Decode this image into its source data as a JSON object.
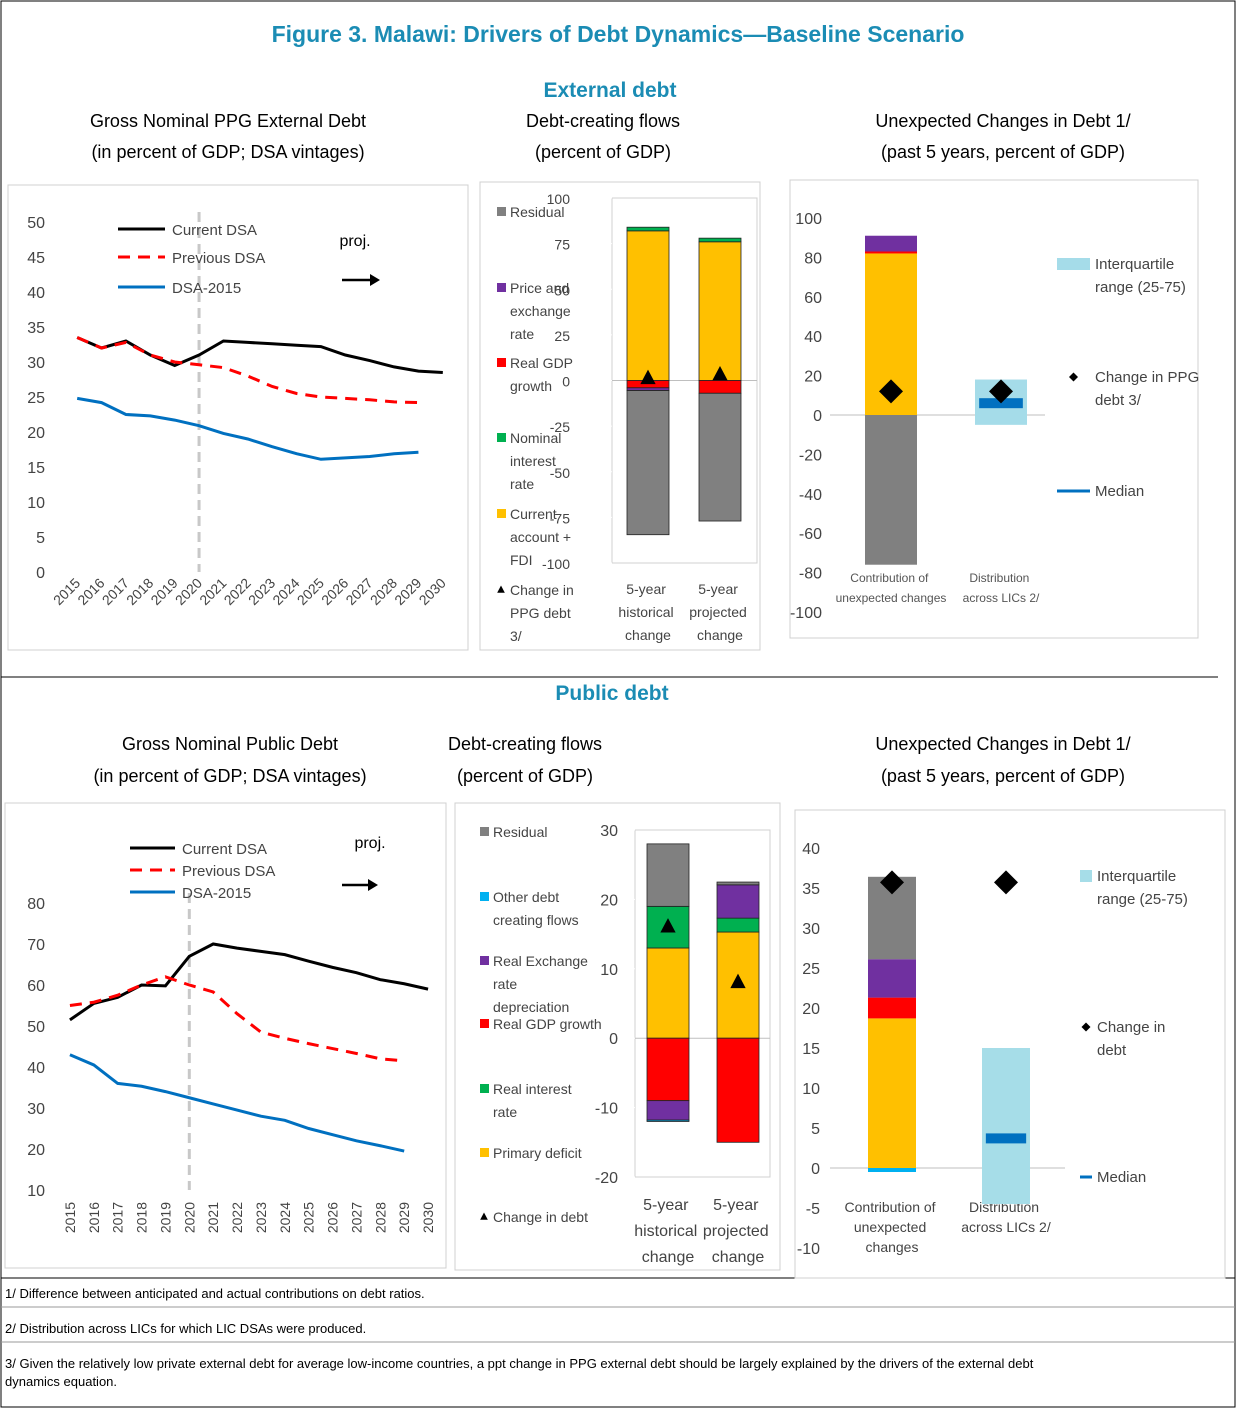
{
  "title": "Figure 3. Malawi: Drivers of Debt Dynamics—Baseline Scenario",
  "sections": [
    "External debt",
    "Public debt"
  ],
  "notes": [
    "1/ Difference between anticipated and actual contributions on debt ratios.",
    "2/ Distribution across LICs for which LIC DSAs were produced.",
    "3/ Given the relatively low private external debt for average low-income countries, a ppt change in PPG external debt should be largely explained by the drivers of the external debt dynamics equation."
  ],
  "chart_data": [
    {
      "type": "line",
      "title": "Gross Nominal PPG External Debt",
      "subtitle": "(in percent of GDP; DSA vintages)",
      "categories": [
        "2015",
        "2016",
        "2017",
        "2018",
        "2019",
        "2020",
        "2021",
        "2022",
        "2023",
        "2024",
        "2025",
        "2026",
        "2027",
        "2028",
        "2029",
        "2030"
      ],
      "ylim": [
        0,
        50
      ],
      "yticks": [
        0,
        5,
        10,
        15,
        20,
        25,
        30,
        35,
        40,
        45,
        50
      ],
      "annotation": "proj.",
      "projection_start": "2020",
      "series": [
        {
          "name": "Current DSA",
          "color": "#000000",
          "values": [
            33.5,
            32,
            33,
            31,
            29.5,
            31,
            33,
            32.8,
            32.6,
            32.4,
            32.2,
            31,
            30.2,
            29.3,
            28.7,
            28.5
          ]
        },
        {
          "name": "Previous DSA",
          "color": "#ff0000",
          "dash": true,
          "values": [
            33.5,
            32,
            32.8,
            31,
            30,
            29.6,
            29.2,
            28,
            26.5,
            25.5,
            25,
            24.8,
            24.6,
            24.3,
            24.2,
            null
          ]
        },
        {
          "name": "DSA-2015",
          "color": "#0070c0",
          "values": [
            24.8,
            24.2,
            22.5,
            22.3,
            21.7,
            20.9,
            19.8,
            19,
            17.9,
            16.9,
            16.1,
            16.3,
            16.5,
            16.9,
            17.1,
            null
          ]
        }
      ]
    },
    {
      "type": "stacked_bar",
      "title": "Debt-creating flows",
      "subtitle": "(percent of GDP)",
      "categories": [
        "5-year historical change",
        "5-year projected change"
      ],
      "ylim": [
        -100,
        100
      ],
      "yticks": [
        -100,
        -75,
        -50,
        -25,
        0,
        25,
        50,
        75,
        100
      ],
      "series": [
        {
          "name": "Residual",
          "color": "#808080",
          "values": [
            -79,
            -70
          ]
        },
        {
          "name": "Price and exchange rate",
          "color": "#7030a0",
          "values": [
            -1.5,
            0
          ]
        },
        {
          "name": "Real GDP growth",
          "color": "#ff0000",
          "values": [
            -4,
            -7
          ]
        },
        {
          "name": "Nominal interest rate",
          "color": "#00b050",
          "values": [
            2,
            2
          ]
        },
        {
          "name": "Current account + FDI",
          "color": "#ffc000",
          "values": [
            82,
            76
          ]
        },
        {
          "name": "Change in PPG debt 3/",
          "color": "#000000",
          "kind": "marker",
          "marker": "triangle",
          "values": [
            1,
            3
          ]
        }
      ]
    },
    {
      "type": "stacked_bar",
      "title": "Unexpected Changes in Debt 1/",
      "subtitle": "(past 5 years, percent of GDP)",
      "categories": [
        "Contribution of unexpected changes",
        "Distribution across LICs 2/"
      ],
      "ylim": [
        -100,
        100
      ],
      "yticks": [
        -100,
        -80,
        -60,
        -40,
        -20,
        0,
        20,
        40,
        60,
        80,
        100
      ],
      "series": [
        {
          "color": "#7030a0",
          "values": [
            8,
            null
          ]
        },
        {
          "color": "#ff0000",
          "values": [
            1,
            null
          ]
        },
        {
          "color": "#ffc000",
          "values": [
            82,
            null
          ]
        },
        {
          "color": "#808080",
          "values": [
            -76,
            null
          ]
        },
        {
          "name": "Interquartile range (25-75)",
          "color": "#a5dce9",
          "kind": "range",
          "low": [
            null,
            -5
          ],
          "high": [
            null,
            18
          ]
        },
        {
          "name": "Change in PPG debt 3/",
          "color": "#000000",
          "kind": "marker",
          "marker": "diamond",
          "values": [
            12,
            12
          ]
        },
        {
          "name": "Median",
          "color": "#0070c0",
          "kind": "median",
          "values": [
            null,
            6
          ]
        }
      ]
    },
    {
      "type": "line",
      "title": "Gross Nominal Public Debt",
      "subtitle": "(in percent of GDP; DSA vintages)",
      "categories": [
        "2015",
        "2016",
        "2017",
        "2018",
        "2019",
        "2020",
        "2021",
        "2022",
        "2023",
        "2024",
        "2025",
        "2026",
        "2027",
        "2028",
        "2029",
        "2030"
      ],
      "ylim": [
        10,
        80
      ],
      "yticks": [
        10,
        20,
        30,
        40,
        50,
        60,
        70,
        80
      ],
      "annotation": "proj.",
      "projection_start": "2020",
      "series": [
        {
          "name": "Current DSA",
          "color": "#000000",
          "values": [
            51.5,
            55.5,
            57,
            60,
            59.8,
            67,
            70,
            69,
            68.2,
            67.4,
            65.8,
            64.3,
            63,
            61.3,
            60.3,
            59
          ]
        },
        {
          "name": "Previous DSA",
          "color": "#ff0000",
          "dash": true,
          "values": [
            55,
            55.8,
            57.5,
            60,
            62,
            60,
            58.3,
            53,
            48.5,
            47,
            45.7,
            44.5,
            43.3,
            42,
            41.5,
            null
          ]
        },
        {
          "name": "DSA-2015",
          "color": "#0070c0",
          "values": [
            43,
            40.5,
            36,
            35.3,
            34,
            32.5,
            31,
            29.5,
            28,
            27,
            25,
            23.5,
            22,
            20.8,
            19.5,
            null
          ]
        }
      ]
    },
    {
      "type": "stacked_bar",
      "title": "Debt-creating flows",
      "subtitle": "(percent of GDP)",
      "categories": [
        "5-year historical change",
        "5-year projected change"
      ],
      "ylim": [
        -20,
        30
      ],
      "yticks": [
        -20,
        -10,
        0,
        10,
        20,
        30
      ],
      "series": [
        {
          "name": "Residual",
          "color": "#808080",
          "values": [
            9,
            0.4
          ]
        },
        {
          "name": "Other debt creating flows",
          "color": "#00b0f0",
          "values": [
            -0.2,
            0
          ]
        },
        {
          "name": "Real Exchange rate depreciation",
          "color": "#7030a0",
          "values": [
            -2.8,
            4.8
          ]
        },
        {
          "name": "Real GDP growth",
          "color": "#ff0000",
          "values": [
            -9,
            -15
          ]
        },
        {
          "name": "Real interest rate",
          "color": "#00b050",
          "values": [
            6,
            2
          ]
        },
        {
          "name": "Primary deficit",
          "color": "#ffc000",
          "values": [
            13,
            15.3
          ]
        },
        {
          "name": "Change in debt",
          "color": "#000000",
          "kind": "marker",
          "marker": "triangle",
          "values": [
            16,
            8
          ]
        }
      ]
    },
    {
      "type": "stacked_bar",
      "title": "Unexpected Changes in Debt 1/",
      "subtitle": "(past 5 years, percent of GDP)",
      "categories": [
        "Contribution of unexpected changes",
        "Distribution across LICs 2/"
      ],
      "ylim": [
        -10,
        40
      ],
      "yticks": [
        -10,
        -5,
        0,
        5,
        10,
        15,
        20,
        25,
        30,
        35,
        40
      ],
      "series": [
        {
          "color": "#808080",
          "values": [
            10.3,
            null
          ]
        },
        {
          "color": "#7030a0",
          "values": [
            4.8,
            null
          ]
        },
        {
          "color": "#ff0000",
          "values": [
            2.6,
            null
          ]
        },
        {
          "color": "#ffc000",
          "values": [
            18.7,
            null
          ]
        },
        {
          "color": "#00b0f0",
          "values": [
            -0.5,
            null
          ]
        },
        {
          "name": "Interquartile range (25-75)",
          "color": "#a6dde8",
          "kind": "range",
          "low": [
            null,
            -4.5
          ],
          "high": [
            null,
            15
          ]
        },
        {
          "name": "Change in debt",
          "color": "#000000",
          "kind": "marker",
          "marker": "diamond",
          "values": [
            35.7,
            35.7
          ]
        },
        {
          "name": "Median",
          "color": "#0070c0",
          "kind": "median",
          "values": [
            null,
            3.7
          ]
        }
      ]
    }
  ]
}
